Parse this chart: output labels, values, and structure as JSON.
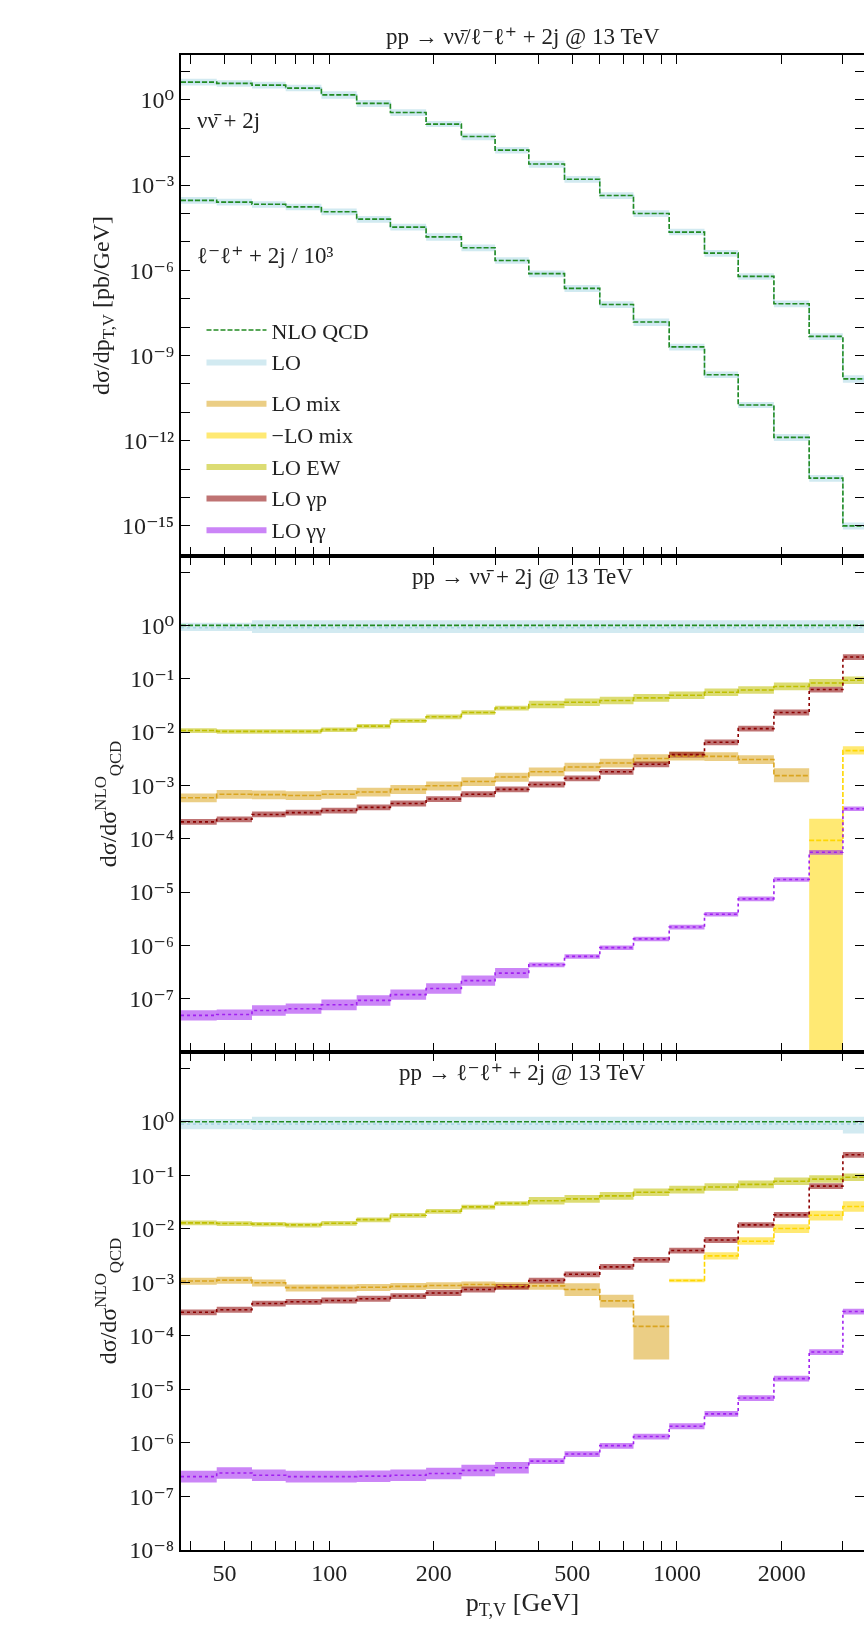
{
  "chart_data": [
    {
      "type": "step",
      "title": "pp → νν̄/ℓ⁻ℓ⁺ + 2j @ 13 TeV",
      "ylabel": "dσ/dp$_{T,V}$ [pb/GeV]",
      "annotations": [
        "νν̄ + 2j",
        "ℓ⁻ℓ⁺ + 2j / 10³"
      ],
      "log": "xy",
      "legend": "bottom left",
      "tick_labels": "y",
      "x": [
        37.5,
        47.5,
        60,
        75,
        95,
        120,
        150,
        190,
        240,
        300,
        375,
        475,
        600,
        750,
        950,
        1200,
        1500,
        1900,
        2400,
        3000,
        3450
      ],
      "xlim": [
        37.5,
        3450
      ],
      "xticks": [
        {
          "value": 40,
          "label": null
        },
        50,
        {
          "value": 60,
          "label": null
        },
        {
          "value": 70,
          "label": null
        },
        {
          "value": 80,
          "label": null
        },
        {
          "value": 90,
          "label": null
        },
        100,
        200,
        {
          "value": 300,
          "label": null
        },
        {
          "value": 400,
          "label": null
        },
        500,
        {
          "value": 600,
          "label": null
        },
        {
          "value": 700,
          "label": null
        },
        {
          "value": 800,
          "label": null
        },
        {
          "value": 900,
          "label": null
        },
        1000,
        2000,
        {
          "value": 3000,
          "label": null
        }
      ],
      "ylim": [
        8.7e-17,
        38
      ],
      "yticks": [
        {
          "value": 10,
          "label": null
        },
        {
          "value": 1,
          "label": "10⁰"
        },
        {
          "value": 0.1,
          "label": null
        },
        {
          "value": 0.01,
          "label": null
        },
        {
          "value": 0.001,
          "label": "10⁻³"
        },
        {
          "value": 0.0001,
          "label": null
        },
        {
          "value": 1e-05,
          "label": null
        },
        {
          "value": 1e-06,
          "label": "10⁻⁶"
        },
        {
          "value": 1e-07,
          "label": null
        },
        {
          "value": 1e-08,
          "label": null
        },
        {
          "value": 1e-09,
          "label": "10⁻⁹"
        },
        {
          "value": 1e-10,
          "label": null
        },
        {
          "value": 1e-11,
          "label": null
        },
        {
          "value": 1e-12,
          "label": "10⁻¹²"
        },
        {
          "value": 1e-13,
          "label": null
        },
        {
          "value": 1e-14,
          "label": null
        },
        {
          "value": 1e-15,
          "label": "10⁻¹⁵"
        },
        {
          "value": 1e-16,
          "label": null
        }
      ],
      "series": [
        {
          "name": "NLO QCD",
          "color": "#228b22",
          "line_style": "dashed",
          "values": [
            4.2,
            3.8,
            3.3,
            2.6,
            1.5,
            0.75,
            0.36,
            0.14,
            0.051,
            0.017,
            0.0055,
            0.0016,
            0.00043,
            0.0001,
            2.2e-05,
            4e-06,
            6.1e-07,
            6.6e-08,
            4.7e-09,
            1.5e-10,
            1.5e-10
          ]
        },
        {
          "name": "LO",
          "color": "#add8e6",
          "line_style": "dotted",
          "values": [
            4.2,
            3.8,
            3.3,
            2.6,
            1.5,
            0.75,
            0.36,
            0.14,
            0.051,
            0.017,
            0.0055,
            0.0016,
            0.00043,
            0.0001,
            2.2e-05,
            4e-06,
            6.1e-07,
            6.6e-08,
            4.7e-09,
            1.5e-10,
            1.5e-10
          ],
          "lower": [
            3.2,
            2.9,
            2.5,
            2.0,
            1.1,
            0.56,
            0.27,
            0.11,
            0.038,
            0.013,
            0.0041,
            0.0012,
            0.00032,
            7.5e-05,
            1.7e-05,
            3e-06,
            4.6e-07,
            5e-08,
            3.5e-09,
            1.1e-10,
            1.1e-10
          ],
          "upper": [
            5.5,
            4.9,
            4.3,
            3.4,
            2.0,
            0.98,
            0.47,
            0.18,
            0.066,
            0.022,
            0.0072,
            0.0021,
            0.00056,
            0.00013,
            2.9e-05,
            5.2e-06,
            7.9e-07,
            8.6e-08,
            6.1e-09,
            2e-10,
            2e-10
          ]
        },
        {
          "color": "#acd8e6",
          "line_style": "dotted",
          "values": [
            0.00029,
            0.00025,
            0.00021,
            0.00017,
            0.000115,
            6.3e-05,
            3.3e-05,
            1.5e-05,
            6.2e-06,
            2.2e-06,
            7.6e-07,
            2.3e-07,
            6.2e-08,
            1.5e-08,
            2e-09,
            2.1e-10,
            1.8e-11,
            1.3e-12,
            4.8e-14,
            1e-15,
            1e-15
          ],
          "lower": [
            0.00022,
            0.00019,
            0.00016,
            0.00013,
            8.6e-05,
            4.7e-05,
            2.5e-05,
            1.1e-05,
            4.7e-06,
            1.7e-06,
            5.7e-07,
            1.7e-07,
            4.7e-08,
            1.1e-08,
            1.5e-09,
            1.6e-10,
            1.4e-11,
            9.8e-13,
            3.6e-14,
            7.5e-16,
            7.5e-16
          ],
          "upper": [
            0.00038,
            0.00033,
            0.00027,
            0.00022,
            0.00015,
            8.2e-05,
            4.3e-05,
            2e-05,
            8.1e-06,
            2.9e-06,
            9.9e-07,
            3e-07,
            8.1e-08,
            2e-08,
            2.6e-09,
            2.7e-10,
            2.3e-11,
            1.7e-12,
            6.2e-14,
            1.3e-15,
            1.3e-15
          ]
        },
        {
          "color": "#228b22",
          "line_style": "dashed",
          "values": [
            0.00029,
            0.00025,
            0.00021,
            0.00017,
            0.000115,
            6.3e-05,
            3.3e-05,
            1.5e-05,
            6.2e-06,
            2.2e-06,
            7.6e-07,
            2.3e-07,
            6.2e-08,
            1.5e-08,
            2e-09,
            2.1e-10,
            1.8e-11,
            1.3e-12,
            4.8e-14,
            1e-15,
            1e-15
          ]
        }
      ]
    },
    {
      "type": "step",
      "title": "pp → νν̄ + 2j @ 13 TeV",
      "ylabel": "dσ/dσ$^{NLO}$$_{QCD}$",
      "log": "xy",
      "legend": "top left",
      "tick_labels": "y",
      "x": [
        37.5,
        47.5,
        60,
        75,
        95,
        120,
        150,
        190,
        240,
        300,
        375,
        475,
        600,
        750,
        950,
        1200,
        1500,
        1900,
        2400,
        3000,
        3450
      ],
      "xlim": [
        37.5,
        3450
      ],
      "xticks": [
        {
          "value": 40,
          "label": null
        },
        50,
        {
          "value": 60,
          "label": null
        },
        {
          "value": 70,
          "label": null
        },
        {
          "value": 80,
          "label": null
        },
        {
          "value": 90,
          "label": null
        },
        100,
        200,
        {
          "value": 300,
          "label": null
        },
        {
          "value": 400,
          "label": null
        },
        500,
        {
          "value": 600,
          "label": null
        },
        {
          "value": 700,
          "label": null
        },
        {
          "value": 800,
          "label": null
        },
        {
          "value": 900,
          "label": null
        },
        1000,
        2000,
        {
          "value": 3000,
          "label": null
        }
      ],
      "ylim": [
        1e-08,
        20
      ],
      "yticks": [
        {
          "value": 10,
          "label": null
        },
        {
          "value": 1,
          "label": "10⁰"
        },
        {
          "value": 0.1,
          "label": "10⁻¹"
        },
        {
          "value": 0.01,
          "label": "10⁻²"
        },
        {
          "value": 0.001,
          "label": "10⁻³"
        },
        {
          "value": 0.0001,
          "label": "10⁻⁴"
        },
        {
          "value": 1e-05,
          "label": "10⁻⁵"
        },
        {
          "value": 1e-06,
          "label": "10⁻⁶"
        },
        {
          "value": 1e-07,
          "label": "10⁻⁷"
        },
        {
          "value": 1e-08,
          "label": null
        }
      ],
      "series": [
        {
          "color": "#add8e6",
          "line_style": "dotted",
          "values": [
            0.9,
            0.9,
            0.9,
            0.9,
            0.9,
            0.9,
            0.9,
            0.9,
            0.9,
            0.9,
            0.9,
            0.9,
            0.9,
            0.9,
            0.9,
            0.9,
            0.9,
            0.9,
            0.9,
            0.9,
            0.9
          ],
          "lower": [
            0.78,
            0.78,
            0.72,
            0.72,
            0.72,
            0.72,
            0.72,
            0.72,
            0.72,
            0.72,
            0.72,
            0.72,
            0.72,
            0.72,
            0.72,
            0.72,
            0.72,
            0.72,
            0.72,
            0.72,
            0.72
          ],
          "upper": [
            1.12,
            1.12,
            1.25,
            1.25,
            1.25,
            1.25,
            1.25,
            1.25,
            1.25,
            1.25,
            1.25,
            1.25,
            1.25,
            1.25,
            1.25,
            1.25,
            1.25,
            1.25,
            1.25,
            1.25,
            1.25
          ]
        },
        {
          "color": "#228b22",
          "line_style": "dashed",
          "values": [
            1,
            1,
            1,
            1,
            1,
            1,
            1,
            1,
            1,
            1,
            1,
            1,
            1,
            1,
            1,
            1,
            1,
            1,
            1,
            1,
            1
          ]
        },
        {
          "name": "LO mix",
          "color": "#daa520",
          "line_style": "dashed",
          "values": [
            0.000586,
            0.000683,
            0.00067,
            0.000645,
            0.000683,
            0.000751,
            0.000841,
            0.00098,
            0.00118,
            0.00143,
            0.0018,
            0.00221,
            0.00263,
            0.00318,
            0.00356,
            0.00349,
            0.00306,
            0.00152,
            0.00152,
            null,
            null
          ],
          "lower": [
            0.000481,
            0.00056,
            0.000549,
            0.000529,
            0.00056,
            0.000616,
            0.00069,
            0.000804,
            0.000968,
            0.00117,
            0.00148,
            0.00181,
            0.00216,
            0.00261,
            0.00292,
            0.00286,
            0.00251,
            0.00114,
            0.00114,
            null,
            null
          ],
          "upper": [
            0.000703,
            0.00082,
            0.000804,
            0.000774,
            0.00082,
            0.000901,
            0.00101,
            0.00118,
            0.00142,
            0.00172,
            0.00216,
            0.00265,
            0.00316,
            0.00382,
            0.00427,
            0.00419,
            0.00367,
            0.00209,
            0.00209,
            null,
            null
          ]
        },
        {
          "name": "−LO mix",
          "color": "#ffd700",
          "line_style": "dashed",
          "values": [
            null,
            null,
            null,
            null,
            null,
            null,
            null,
            null,
            null,
            null,
            null,
            null,
            null,
            null,
            null,
            null,
            null,
            null,
            9.3e-05,
            0.00447,
            0.00447
          ],
          "lower": [
            null,
            null,
            null,
            null,
            null,
            null,
            null,
            null,
            null,
            null,
            null,
            null,
            null,
            null,
            null,
            null,
            null,
            null,
            1e-08,
            0.00377,
            0.00377
          ],
          "upper": [
            null,
            null,
            null,
            null,
            null,
            null,
            null,
            null,
            null,
            null,
            null,
            null,
            null,
            null,
            null,
            null,
            null,
            null,
            0.000236,
            0.0054,
            0.0054
          ]
        },
        {
          "name": "LO EW",
          "color": "#bfbf00",
          "line_style": "dashed",
          "values": [
            0.0107,
            0.0103,
            0.0103,
            0.0103,
            0.0111,
            0.0129,
            0.0163,
            0.0193,
            0.0233,
            0.0282,
            0.0328,
            0.0361,
            0.0389,
            0.0436,
            0.0489,
            0.0558,
            0.0614,
            0.0715,
            0.0832,
            0.0933,
            0.0933
          ],
          "lower": [
            0.0096,
            0.0093,
            0.0093,
            0.0093,
            0.01,
            0.0116,
            0.0147,
            0.0174,
            0.021,
            0.0254,
            0.0279,
            0.0307,
            0.0331,
            0.0371,
            0.0416,
            0.0474,
            0.0522,
            0.0608,
            0.0707,
            0.0793,
            0.0793
          ],
          "upper": [
            0.0118,
            0.0113,
            0.0113,
            0.0113,
            0.0122,
            0.0142,
            0.0179,
            0.0212,
            0.0256,
            0.031,
            0.0387,
            0.0426,
            0.0459,
            0.0514,
            0.0577,
            0.0658,
            0.0725,
            0.0844,
            0.0982,
            0.11,
            0.11
          ]
        },
        {
          "name": "LO γp",
          "color": "#8b0000",
          "line_style": "dotted",
          "values": [
            0.000207,
            0.000231,
            0.000285,
            0.000308,
            0.000338,
            0.000386,
            0.000458,
            0.000554,
            0.000683,
            0.000841,
            0.00104,
            0.00135,
            0.0018,
            0.00248,
            0.00377,
            0.00641,
            0.0116,
            0.0233,
            0.0625,
            0.255,
            0.255
          ],
          "lower": [
            0.000182,
            0.000203,
            0.000251,
            0.000271,
            0.000297,
            0.00034,
            0.000403,
            0.000488,
            0.000601,
            0.00074,
            0.000915,
            0.00119,
            0.00158,
            0.00218,
            0.00332,
            0.00564,
            0.0102,
            0.0205,
            0.055,
            0.224,
            0.224
          ],
          "upper": [
            0.000234,
            0.000261,
            0.000322,
            0.000348,
            0.000382,
            0.000436,
            0.000518,
            0.000626,
            0.000772,
            0.00095,
            0.00118,
            0.00153,
            0.00203,
            0.0028,
            0.00426,
            0.00724,
            0.0131,
            0.0263,
            0.0706,
            0.288,
            0.288
          ]
        },
        {
          "name": "LO γγ",
          "color": "#a020f0",
          "line_style": "dotted",
          "values": [
            4.87e-08,
            5.06e-08,
            6e-08,
            6.47e-08,
            7.67e-08,
            9.28e-08,
            1.19e-07,
            1.55e-07,
            2.18e-07,
            3.01e-07,
            4.32e-07,
            6.2e-07,
            9.06e-07,
            1.32e-06,
            2.21e-06,
            3.84e-06,
            7.45e-06,
            1.72e-05,
            5.57e-05,
            0.000365,
            0.000365
          ],
          "lower": [
            3.9e-08,
            4e-08,
            4.8e-08,
            5.2e-08,
            6.1e-08,
            7.4e-08,
            9.5e-08,
            1.24e-07,
            1.74e-07,
            2.41e-07,
            3.89e-07,
            5.58e-07,
            8.15e-07,
            1.19e-06,
            1.99e-06,
            3.46e-06,
            6.71e-06,
            1.55e-05,
            5.01e-05,
            0.000329,
            0.000329
          ],
          "upper": [
            6.1e-08,
            6.3e-08,
            7.5e-08,
            8.1e-08,
            9.6e-08,
            1.16e-07,
            1.49e-07,
            1.94e-07,
            2.73e-07,
            3.76e-07,
            4.75e-07,
            6.82e-07,
            9.97e-07,
            1.45e-06,
            2.43e-06,
            4.22e-06,
            8.2e-06,
            1.89e-05,
            6.13e-05,
            0.000402,
            0.000402
          ]
        }
      ]
    },
    {
      "type": "step",
      "title": "pp → ℓ⁻ℓ⁺ + 2j @ 13 TeV",
      "xlabel": "p$_{T,V}$ [GeV]",
      "ylabel": "dσ/dσ$^{NLO}$$_{QCD}$",
      "log": "xy",
      "x": [
        37.5,
        47.5,
        60,
        75,
        95,
        120,
        150,
        190,
        240,
        300,
        375,
        475,
        600,
        750,
        950,
        1200,
        1500,
        1900,
        2400,
        3000,
        3450
      ],
      "xlim": [
        37.5,
        3450
      ],
      "xticks": [
        {
          "value": 40,
          "label": null
        },
        50,
        {
          "value": 60,
          "label": null
        },
        {
          "value": 70,
          "label": null
        },
        {
          "value": 80,
          "label": null
        },
        {
          "value": 90,
          "label": null
        },
        100,
        200,
        {
          "value": 300,
          "label": null
        },
        {
          "value": 400,
          "label": null
        },
        500,
        {
          "value": 600,
          "label": null
        },
        {
          "value": 700,
          "label": null
        },
        {
          "value": 800,
          "label": null
        },
        {
          "value": 900,
          "label": null
        },
        1000,
        2000,
        {
          "value": 3000,
          "label": null
        }
      ],
      "ylim": [
        1e-08,
        20
      ],
      "yticks": [
        {
          "value": 10,
          "label": null
        },
        {
          "value": 1,
          "label": "10⁰"
        },
        {
          "value": 0.1,
          "label": "10⁻¹"
        },
        {
          "value": 0.01,
          "label": "10⁻²"
        },
        {
          "value": 0.001,
          "label": "10⁻³"
        },
        {
          "value": 0.0001,
          "label": "10⁻⁴"
        },
        {
          "value": 1e-05,
          "label": "10⁻⁵"
        },
        {
          "value": 1e-06,
          "label": "10⁻⁶"
        },
        {
          "value": 1e-07,
          "label": "10⁻⁷"
        },
        {
          "value": 1e-08,
          "label": "10⁻⁸"
        }
      ],
      "series": [
        {
          "color": "#add8e6",
          "line_style": "dotted",
          "values": [
            0.9,
            0.9,
            0.9,
            0.9,
            0.9,
            0.9,
            0.9,
            0.9,
            0.9,
            0.9,
            0.9,
            0.9,
            0.9,
            0.9,
            0.9,
            0.9,
            0.9,
            0.9,
            0.9,
            0.9,
            0.9
          ],
          "lower": [
            0.72,
            0.72,
            0.7,
            0.7,
            0.7,
            0.7,
            0.7,
            0.7,
            0.7,
            0.7,
            0.7,
            0.7,
            0.7,
            0.7,
            0.7,
            0.7,
            0.7,
            0.7,
            0.7,
            0.6,
            0.6
          ],
          "upper": [
            1.12,
            1.12,
            1.23,
            1.23,
            1.23,
            1.23,
            1.23,
            1.23,
            1.23,
            1.23,
            1.23,
            1.23,
            1.23,
            1.23,
            1.23,
            1.23,
            1.23,
            1.23,
            1.23,
            1.23,
            1.23
          ]
        },
        {
          "color": "#228b22",
          "line_style": "dashed",
          "values": [
            1,
            1,
            1,
            1,
            1,
            1,
            1,
            1,
            1,
            1,
            1,
            1,
            1,
            1,
            1,
            1,
            1,
            1,
            1,
            1,
            1
          ]
        },
        {
          "color": "#daa520",
          "line_style": "dashed",
          "values": [
            0.00106,
            0.0011,
            0.00098,
            0.000794,
            0.000794,
            0.00081,
            0.000841,
            0.000873,
            0.000907,
            0.000873,
            0.000857,
            0.000736,
            0.00045,
            0.00015,
            0.00015,
            null,
            null,
            null,
            null,
            null,
            null
          ],
          "lower": [
            0.0009,
            0.000935,
            0.000833,
            0.000675,
            0.000675,
            0.000689,
            0.000715,
            0.000742,
            0.000771,
            0.000742,
            0.000728,
            0.000552,
            0.000338,
            3.6e-05,
            3.6e-05,
            null,
            null,
            null,
            null,
            null,
            null
          ],
          "upper": [
            0.00122,
            0.00127,
            0.00113,
            0.000913,
            0.000913,
            0.000932,
            0.000967,
            0.001,
            0.00104,
            0.001,
            0.000986,
            0.000957,
            0.000585,
            0.00024,
            0.00024,
            null,
            null,
            null,
            null,
            null,
            null
          ]
        },
        {
          "color": "#ffd700",
          "line_style": "dashed",
          "values": [
            null,
            null,
            null,
            null,
            null,
            null,
            null,
            null,
            null,
            null,
            null,
            null,
            null,
            null,
            0.00108,
            0.00312,
            0.00583,
            0.0101,
            0.0179,
            0.0261,
            0.0261
          ],
          "lower": [
            null,
            null,
            null,
            null,
            null,
            null,
            null,
            null,
            null,
            null,
            null,
            null,
            null,
            null,
            0.001,
            0.00268,
            0.00501,
            0.00837,
            0.0142,
            0.0208,
            0.0208
          ],
          "upper": [
            null,
            null,
            null,
            null,
            null,
            null,
            null,
            null,
            null,
            null,
            null,
            null,
            null,
            null,
            0.00116,
            0.00363,
            0.00692,
            0.0122,
            0.0216,
            0.0328,
            0.0328
          ]
        },
        {
          "color": "#bfbf00",
          "line_style": "dashed",
          "values": [
            0.0129,
            0.0125,
            0.0122,
            0.0118,
            0.0127,
            0.0148,
            0.0179,
            0.0212,
            0.0256,
            0.0298,
            0.0334,
            0.0361,
            0.0412,
            0.048,
            0.0538,
            0.0602,
            0.0675,
            0.0771,
            0.0847,
            0.0914,
            0.0914
          ],
          "lower": [
            0.0116,
            0.0113,
            0.011,
            0.0106,
            0.0114,
            0.0133,
            0.0161,
            0.0191,
            0.023,
            0.0268,
            0.0284,
            0.0307,
            0.035,
            0.0408,
            0.0457,
            0.0512,
            0.0574,
            0.0655,
            0.072,
            0.0777,
            0.0777
          ],
          "upper": [
            0.0142,
            0.0138,
            0.0134,
            0.013,
            0.014,
            0.0163,
            0.0197,
            0.0233,
            0.0282,
            0.0328,
            0.0394,
            0.0426,
            0.0486,
            0.0566,
            0.0635,
            0.071,
            0.0797,
            0.091,
            0.0999,
            0.108,
            0.108
          ]
        },
        {
          "color": "#8b0000",
          "line_style": "dotted",
          "values": [
            0.000275,
            0.000308,
            0.000401,
            0.000433,
            0.000458,
            0.000494,
            0.000554,
            0.000633,
            0.000736,
            0.000826,
            0.00108,
            0.00141,
            0.00194,
            0.00263,
            0.00392,
            0.00618,
            0.0118,
            0.0182,
            0.0625,
            0.241,
            0.241
          ],
          "lower": [
            0.000242,
            0.000271,
            0.000353,
            0.000381,
            0.000403,
            0.000435,
            0.000488,
            0.000557,
            0.000648,
            0.000727,
            0.00095,
            0.00124,
            0.00171,
            0.00231,
            0.00345,
            0.00544,
            0.0104,
            0.016,
            0.055,
            0.212,
            0.212
          ],
          "upper": [
            0.000311,
            0.000348,
            0.000453,
            0.000489,
            0.000518,
            0.000558,
            0.000626,
            0.000715,
            0.000832,
            0.000933,
            0.00122,
            0.00159,
            0.00219,
            0.00297,
            0.00443,
            0.00698,
            0.0133,
            0.0206,
            0.0706,
            0.272,
            0.272
          ]
        },
        {
          "color": "#a020f0",
          "line_style": "dotted",
          "values": [
            2.35e-07,
            2.74e-07,
            2.49e-07,
            2.35e-07,
            2.35e-07,
            2.4e-07,
            2.49e-07,
            2.69e-07,
            3.07e-07,
            3.44e-07,
            4.57e-07,
            6.2e-07,
            8.89e-07,
            1.32e-06,
            2.05e-06,
            3.49e-06,
            6.9e-06,
            1.59e-05,
            4.98e-05,
            0.000285,
            0.000285
          ],
          "lower": [
            1.83e-07,
            2.14e-07,
            1.94e-07,
            1.83e-07,
            1.83e-07,
            1.87e-07,
            1.94e-07,
            2.1e-07,
            2.39e-07,
            2.68e-07,
            4.02e-07,
            5.46e-07,
            7.82e-07,
            1.16e-06,
            1.8e-06,
            3.07e-06,
            6.07e-06,
            1.4e-05,
            4.38e-05,
            0.000251,
            0.000251
          ],
          "upper": [
            3.01e-07,
            3.51e-07,
            3.19e-07,
            3.01e-07,
            3.01e-07,
            3.07e-07,
            3.19e-07,
            3.44e-07,
            3.93e-07,
            4.4e-07,
            5.16e-07,
            7.01e-07,
            1e-06,
            1.49e-06,
            2.32e-06,
            3.94e-06,
            7.8e-06,
            1.8e-05,
            5.63e-05,
            0.000322,
            0.000322
          ]
        }
      ]
    }
  ]
}
